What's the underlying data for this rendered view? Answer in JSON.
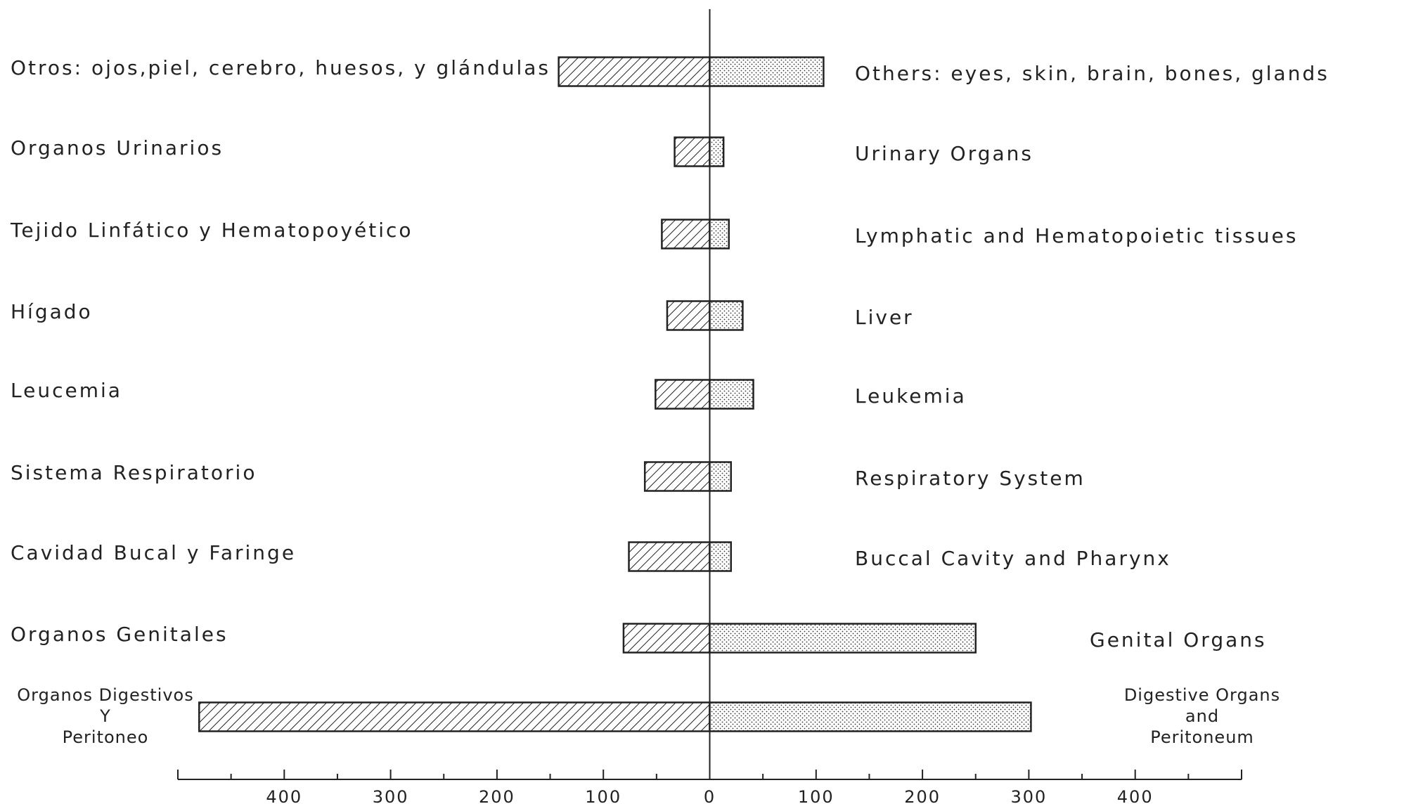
{
  "chart_data": {
    "type": "butterfly-bar",
    "labels_left": [
      "Otros: ojos,piel, cerebro, huesos, y glándulas",
      "Organos Urinarios",
      "Tejido Linfático y Hematopoyético",
      "Hígado",
      "Leucemia",
      "Sistema Respiratorio",
      "Cavidad Bucal y Faringe",
      "Organos Genitales",
      [
        "Organos Digestivos",
        "Y",
        "Peritoneo"
      ]
    ],
    "labels_right": [
      "Others: eyes, skin, brain, bones, glands",
      "Urinary Organs",
      "Lymphatic and Hematopoietic tissues",
      "Liver",
      "Leukemia",
      "Respiratory System",
      "Buccal Cavity and Pharynx",
      "Genital Organs",
      [
        "Digestive Organs",
        "and",
        "Peritoneum"
      ]
    ],
    "series": [
      {
        "pattern": "hatch",
        "color": "#222222",
        "values": [
          -142,
          -33,
          -45,
          -40,
          -51,
          -61,
          -76,
          -81,
          -480
        ]
      },
      {
        "pattern": "dots",
        "color": "#222222",
        "values": [
          107,
          13,
          18,
          31,
          41,
          20,
          20,
          250,
          302
        ]
      }
    ],
    "xlim": [
      -500,
      500
    ],
    "xticks": [
      {
        "value": -400,
        "label": "400"
      },
      {
        "value": -300,
        "label": "300"
      },
      {
        "value": -200,
        "label": "200"
      },
      {
        "value": -100,
        "label": "100"
      },
      0,
      100,
      200,
      300,
      400
    ],
    "xticks_minor": [
      -450,
      -350,
      -250,
      -150,
      -50,
      50,
      150,
      250,
      350,
      450
    ]
  }
}
